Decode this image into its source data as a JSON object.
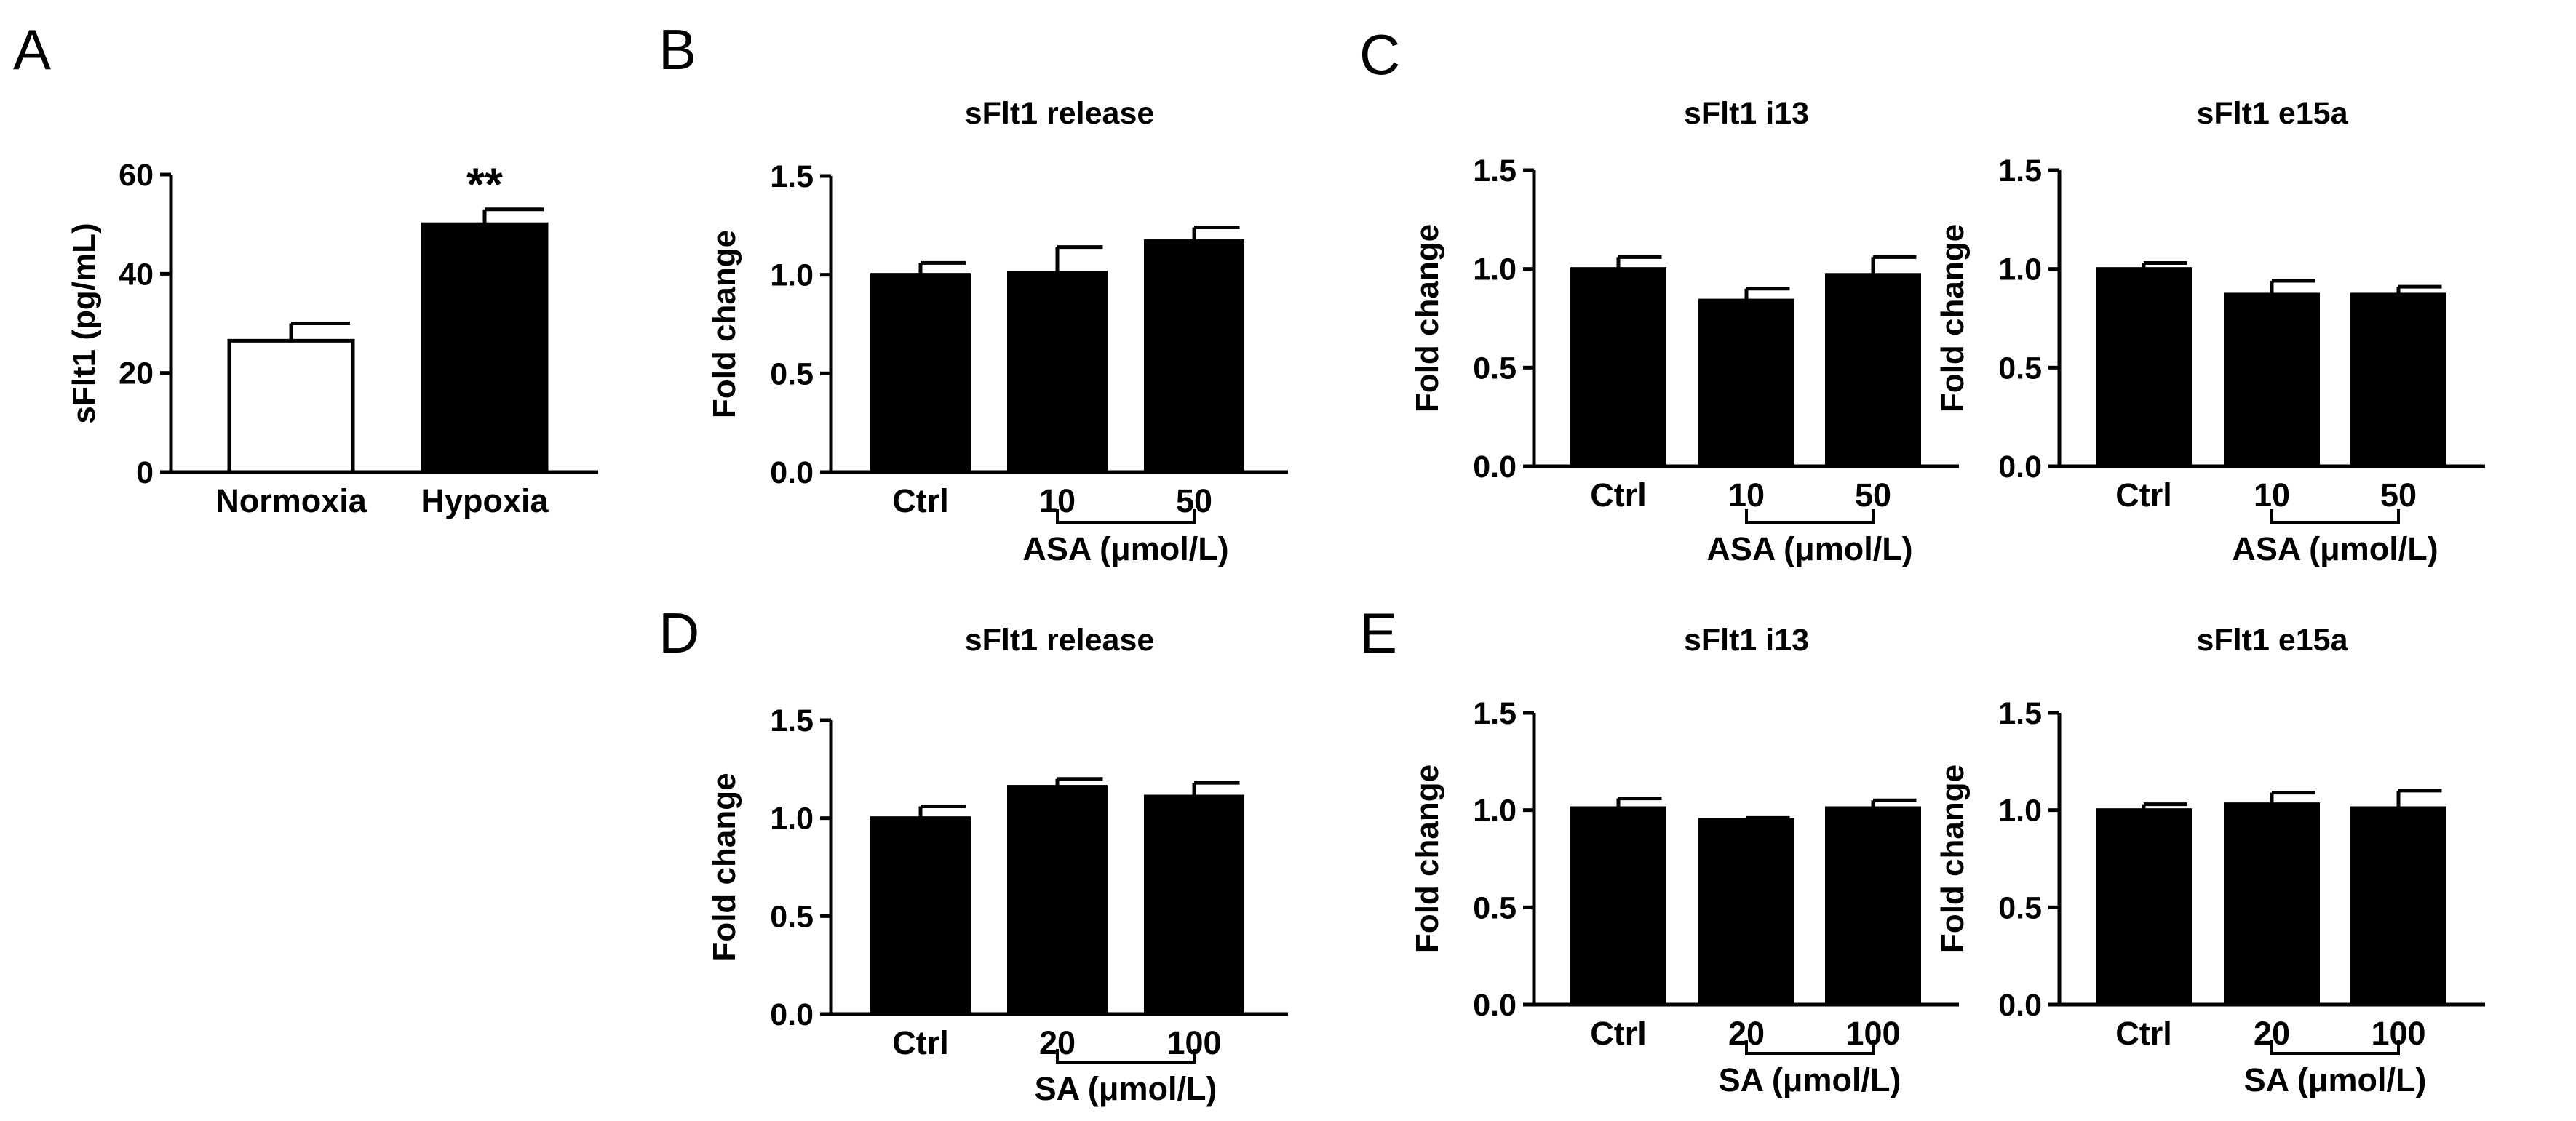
{
  "chart_data": [
    {
      "panel": "A",
      "type": "bar",
      "title": "",
      "ylabel": "sFlt1 (pg/mL)",
      "xlabel": "",
      "ylim": [
        0,
        60
      ],
      "yticks": [
        "0",
        "20",
        "40",
        "60"
      ],
      "categories": [
        "Normoxia",
        "Hypoxia"
      ],
      "values": [
        26.5,
        50
      ],
      "errors": [
        3.5,
        3
      ],
      "fills": [
        "#ffffff",
        "#000000"
      ],
      "annotations": [
        "",
        "**"
      ],
      "group_label": null
    },
    {
      "panel": "B",
      "type": "bar",
      "title": "sFlt1 release",
      "ylabel": "Fold change",
      "xlabel": "",
      "ylim": [
        0,
        1.5
      ],
      "yticks": [
        "0.0",
        "0.5",
        "1.0",
        "1.5"
      ],
      "categories": [
        "Ctrl",
        "10",
        "50"
      ],
      "values": [
        1.0,
        1.01,
        1.17
      ],
      "errors": [
        0.06,
        0.13,
        0.07
      ],
      "group_label": "ASA (μmol/L)"
    },
    {
      "panel": "C",
      "type": "bar",
      "title": "sFlt1 i13",
      "ylabel": "Fold change",
      "xlabel": "",
      "ylim": [
        0,
        1.5
      ],
      "yticks": [
        "0.0",
        "0.5",
        "1.0",
        "1.5"
      ],
      "categories": [
        "Ctrl",
        "10",
        "50"
      ],
      "values": [
        1.0,
        0.84,
        0.97
      ],
      "errors": [
        0.06,
        0.06,
        0.09
      ],
      "group_label": "ASA (μmol/L)"
    },
    {
      "panel": "",
      "type": "bar",
      "title": "sFlt1 e15a",
      "ylabel": "Fold change",
      "xlabel": "",
      "ylim": [
        0,
        1.5
      ],
      "yticks": [
        "0.0",
        "0.5",
        "1.0",
        "1.5"
      ],
      "categories": [
        "Ctrl",
        "10",
        "50"
      ],
      "values": [
        1.0,
        0.87,
        0.87
      ],
      "errors": [
        0.03,
        0.07,
        0.04
      ],
      "group_label": "ASA (μmol/L)"
    },
    {
      "panel": "D",
      "type": "bar",
      "title": "sFlt1 release",
      "ylabel": "Fold change",
      "xlabel": "",
      "ylim": [
        0,
        1.5
      ],
      "yticks": [
        "0.0",
        "0.5",
        "1.0",
        "1.5"
      ],
      "categories": [
        "Ctrl",
        "20",
        "100"
      ],
      "values": [
        1.0,
        1.16,
        1.11
      ],
      "errors": [
        0.06,
        0.04,
        0.07
      ],
      "group_label": "SA (μmol/L)"
    },
    {
      "panel": "E",
      "type": "bar",
      "title": "sFlt1 i13",
      "ylabel": "Fold change",
      "xlabel": "",
      "ylim": [
        0,
        1.5
      ],
      "yticks": [
        "0.0",
        "0.5",
        "1.0",
        "1.5"
      ],
      "categories": [
        "Ctrl",
        "20",
        "100"
      ],
      "values": [
        1.01,
        0.95,
        1.01
      ],
      "errors": [
        0.05,
        0.01,
        0.04
      ],
      "group_label": "SA (μmol/L)"
    },
    {
      "panel": "",
      "type": "bar",
      "title": "sFlt1 e15a",
      "ylabel": "Fold change",
      "xlabel": "",
      "ylim": [
        0,
        1.5
      ],
      "yticks": [
        "0.0",
        "0.5",
        "1.0",
        "1.5"
      ],
      "categories": [
        "Ctrl",
        "20",
        "100"
      ],
      "values": [
        1.0,
        1.03,
        1.01
      ],
      "errors": [
        0.03,
        0.06,
        0.09
      ],
      "group_label": "SA (μmol/L)"
    }
  ]
}
